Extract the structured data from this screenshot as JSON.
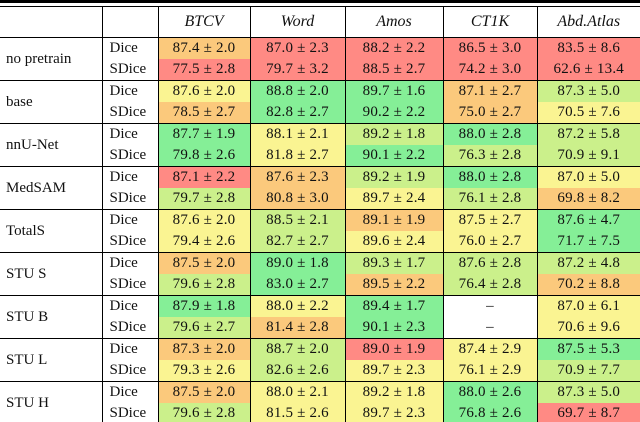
{
  "table": {
    "header": {
      "corner_model": "",
      "corner_metric": "",
      "columns": [
        "BTCV",
        "Word",
        "Amos",
        "CT1K",
        "Abd.Atlas"
      ]
    },
    "palette": {
      "red": "#FF8A84",
      "orange": "#FBC97C",
      "yellow": "#FAF492",
      "yellowgreen": "#CBF08B",
      "green": "#85EF97",
      "white": "#FFFFFF"
    },
    "groups": [
      {
        "label": "no pretrain",
        "rows": [
          {
            "metric": "Dice",
            "cells": [
              {
                "v": "87.4 ± 2.0",
                "c": "orange"
              },
              {
                "v": "87.0 ± 2.3",
                "c": "red"
              },
              {
                "v": "88.2 ± 2.2",
                "c": "red"
              },
              {
                "v": "86.5 ± 3.0",
                "c": "red"
              },
              {
                "v": "83.5 ± 8.6",
                "c": "red"
              }
            ]
          },
          {
            "metric": "SDice",
            "cells": [
              {
                "v": "77.5 ± 2.8",
                "c": "red"
              },
              {
                "v": "79.7 ± 3.2",
                "c": "red"
              },
              {
                "v": "88.5 ± 2.7",
                "c": "red"
              },
              {
                "v": "74.2 ± 3.0",
                "c": "red"
              },
              {
                "v": "62.6 ± 13.4",
                "c": "red"
              }
            ]
          }
        ]
      },
      {
        "label": "base",
        "rows": [
          {
            "metric": "Dice",
            "cells": [
              {
                "v": "87.6 ± 2.0",
                "c": "yellow"
              },
              {
                "v": "88.8 ± 2.0",
                "c": "green"
              },
              {
                "v": "89.7 ± 1.6",
                "c": "green"
              },
              {
                "v": "87.1 ± 2.7",
                "c": "orange"
              },
              {
                "v": "87.3 ± 5.0",
                "c": "yellowgreen"
              }
            ]
          },
          {
            "metric": "SDice",
            "cells": [
              {
                "v": "78.5 ± 2.7",
                "c": "orange"
              },
              {
                "v": "82.8 ± 2.7",
                "c": "green"
              },
              {
                "v": "90.2 ± 2.2",
                "c": "green"
              },
              {
                "v": "75.0 ± 2.7",
                "c": "orange"
              },
              {
                "v": "70.5 ± 7.6",
                "c": "yellow"
              }
            ]
          }
        ]
      },
      {
        "label": "nnU-Net",
        "rows": [
          {
            "metric": "Dice",
            "cells": [
              {
                "v": "87.7 ± 1.9",
                "c": "green"
              },
              {
                "v": "88.1 ± 2.1",
                "c": "yellow"
              },
              {
                "v": "89.2 ± 1.8",
                "c": "yellowgreen"
              },
              {
                "v": "88.0 ± 2.8",
                "c": "green"
              },
              {
                "v": "87.2 ± 5.8",
                "c": "yellowgreen"
              }
            ]
          },
          {
            "metric": "SDice",
            "cells": [
              {
                "v": "79.8 ± 2.6",
                "c": "green"
              },
              {
                "v": "81.8 ± 2.7",
                "c": "yellow"
              },
              {
                "v": "90.1 ± 2.2",
                "c": "green"
              },
              {
                "v": "76.3 ± 2.8",
                "c": "yellowgreen"
              },
              {
                "v": "70.9 ± 9.1",
                "c": "yellowgreen"
              }
            ]
          }
        ]
      },
      {
        "label": "MedSAM",
        "rows": [
          {
            "metric": "Dice",
            "cells": [
              {
                "v": "87.1 ± 2.2",
                "c": "red"
              },
              {
                "v": "87.6 ± 2.3",
                "c": "orange"
              },
              {
                "v": "89.2 ± 1.9",
                "c": "yellowgreen"
              },
              {
                "v": "88.0 ± 2.8",
                "c": "green"
              },
              {
                "v": "87.0 ± 5.0",
                "c": "yellow"
              }
            ]
          },
          {
            "metric": "SDice",
            "cells": [
              {
                "v": "79.7 ± 2.8",
                "c": "yellowgreen"
              },
              {
                "v": "80.8 ± 3.0",
                "c": "orange"
              },
              {
                "v": "89.7 ± 2.4",
                "c": "yellow"
              },
              {
                "v": "76.1 ± 2.8",
                "c": "yellowgreen"
              },
              {
                "v": "69.8 ± 8.2",
                "c": "orange"
              }
            ]
          }
        ]
      },
      {
        "label": "TotalS",
        "rows": [
          {
            "metric": "Dice",
            "cells": [
              {
                "v": "87.6 ± 2.0",
                "c": "yellow"
              },
              {
                "v": "88.5 ± 2.1",
                "c": "yellowgreen"
              },
              {
                "v": "89.1 ± 1.9",
                "c": "orange"
              },
              {
                "v": "87.5 ± 2.7",
                "c": "yellow"
              },
              {
                "v": "87.6 ± 4.7",
                "c": "green"
              }
            ]
          },
          {
            "metric": "SDice",
            "cells": [
              {
                "v": "79.4 ± 2.6",
                "c": "yellow"
              },
              {
                "v": "82.7 ± 2.7",
                "c": "yellowgreen"
              },
              {
                "v": "89.6 ± 2.4",
                "c": "yellow"
              },
              {
                "v": "76.0 ± 2.7",
                "c": "yellow"
              },
              {
                "v": "71.7 ± 7.5",
                "c": "green"
              }
            ]
          }
        ]
      },
      {
        "label": "STU S",
        "rows": [
          {
            "metric": "Dice",
            "cells": [
              {
                "v": "87.5 ± 2.0",
                "c": "orange"
              },
              {
                "v": "89.0 ± 1.8",
                "c": "green"
              },
              {
                "v": "89.3 ± 1.7",
                "c": "yellowgreen"
              },
              {
                "v": "87.6 ± 2.8",
                "c": "yellowgreen"
              },
              {
                "v": "87.2 ± 4.8",
                "c": "yellowgreen"
              }
            ]
          },
          {
            "metric": "SDice",
            "cells": [
              {
                "v": "79.6 ± 2.8",
                "c": "yellowgreen"
              },
              {
                "v": "83.0 ± 2.7",
                "c": "green"
              },
              {
                "v": "89.5 ± 2.2",
                "c": "orange"
              },
              {
                "v": "76.4 ± 2.8",
                "c": "yellowgreen"
              },
              {
                "v": "70.2 ± 8.8",
                "c": "orange"
              }
            ]
          }
        ]
      },
      {
        "label": "STU B",
        "rows": [
          {
            "metric": "Dice",
            "cells": [
              {
                "v": "87.9 ± 1.8",
                "c": "green"
              },
              {
                "v": "88.0 ± 2.2",
                "c": "yellow"
              },
              {
                "v": "89.4 ± 1.7",
                "c": "green"
              },
              {
                "v": "–",
                "c": "white"
              },
              {
                "v": "87.0 ± 6.1",
                "c": "yellow"
              }
            ]
          },
          {
            "metric": "SDice",
            "cells": [
              {
                "v": "79.6 ± 2.7",
                "c": "yellowgreen"
              },
              {
                "v": "81.4 ± 2.8",
                "c": "orange"
              },
              {
                "v": "90.1 ± 2.3",
                "c": "green"
              },
              {
                "v": "–",
                "c": "white"
              },
              {
                "v": "70.6 ± 9.6",
                "c": "yellow"
              }
            ]
          }
        ]
      },
      {
        "label": "STU L",
        "rows": [
          {
            "metric": "Dice",
            "cells": [
              {
                "v": "87.3 ± 2.0",
                "c": "orange"
              },
              {
                "v": "88.7 ± 2.0",
                "c": "yellowgreen"
              },
              {
                "v": "89.0 ± 1.9",
                "c": "red"
              },
              {
                "v": "87.4 ± 2.9",
                "c": "yellow"
              },
              {
                "v": "87.5 ± 5.3",
                "c": "green"
              }
            ]
          },
          {
            "metric": "SDice",
            "cells": [
              {
                "v": "79.3 ± 2.6",
                "c": "yellow"
              },
              {
                "v": "82.6 ± 2.6",
                "c": "yellowgreen"
              },
              {
                "v": "89.7 ± 2.3",
                "c": "yellow"
              },
              {
                "v": "76.1 ± 2.9",
                "c": "yellow"
              },
              {
                "v": "70.9 ± 7.7",
                "c": "yellowgreen"
              }
            ]
          }
        ]
      },
      {
        "label": "STU H",
        "rows": [
          {
            "metric": "Dice",
            "cells": [
              {
                "v": "87.5 ± 2.0",
                "c": "orange"
              },
              {
                "v": "88.0 ± 2.1",
                "c": "yellow"
              },
              {
                "v": "89.2 ± 1.8",
                "c": "yellow"
              },
              {
                "v": "88.0 ± 2.6",
                "c": "green"
              },
              {
                "v": "87.3 ± 5.0",
                "c": "yellowgreen"
              }
            ]
          },
          {
            "metric": "SDice",
            "cells": [
              {
                "v": "79.6 ± 2.8",
                "c": "yellowgreen"
              },
              {
                "v": "81.5 ± 2.6",
                "c": "yellow"
              },
              {
                "v": "89.7 ± 2.3",
                "c": "yellow"
              },
              {
                "v": "76.8 ± 2.6",
                "c": "green"
              },
              {
                "v": "69.7 ± 8.7",
                "c": "red"
              }
            ]
          }
        ]
      }
    ]
  }
}
